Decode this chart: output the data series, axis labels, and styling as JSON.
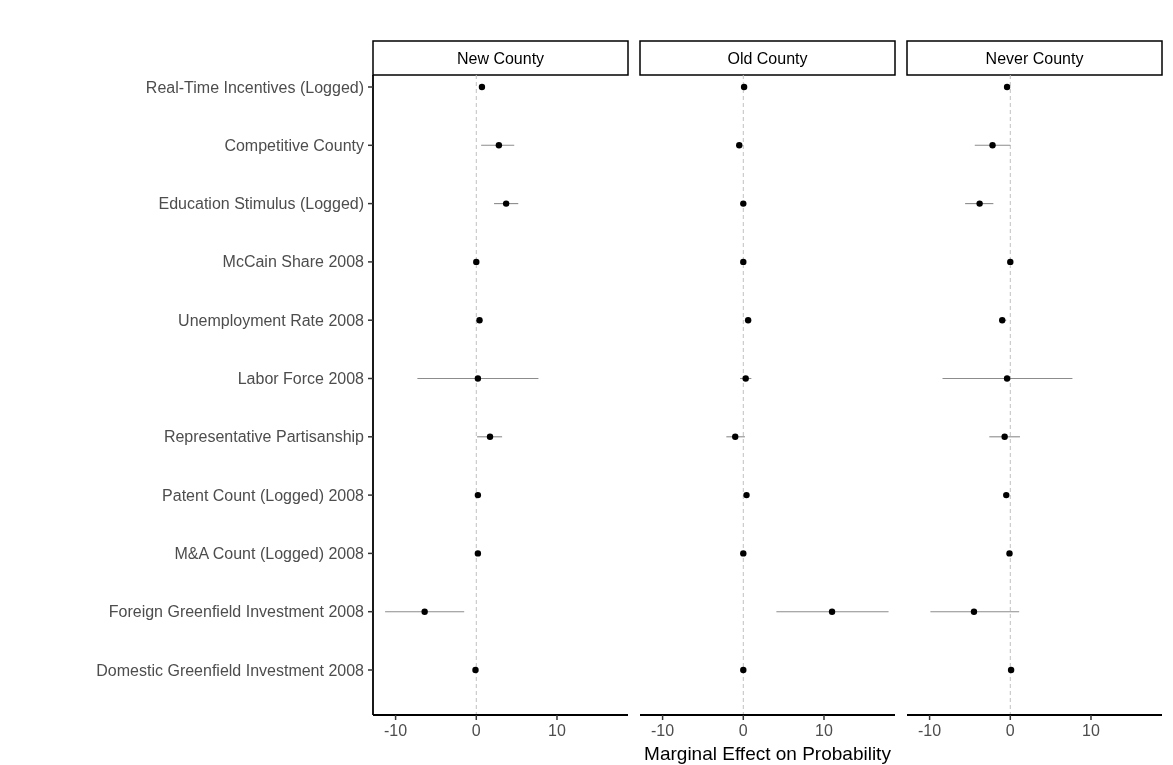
{
  "chart_data": [
    {
      "type": "scatter",
      "title": "New County",
      "orientation": "horizontal",
      "categories": [
        "Real-Time Incentives (Logged)",
        "Competitive County",
        "Education Stimulus (Logged)",
        "McCain Share 2008",
        "Unemployment Rate 2008",
        "Labor Force 2008",
        "Representative Partisanship",
        "Patent Count (Logged) 2008",
        "M&A Count (Logged) 2008",
        "Foreign Greenfield Investment 2008",
        "Domestic Greenfield Investment 2008"
      ],
      "values": [
        0.7,
        2.8,
        3.7,
        0.0,
        0.4,
        0.2,
        1.7,
        0.2,
        0.2,
        -6.4,
        -0.1
      ],
      "errors": [
        null,
        [
          0.6,
          4.7
        ],
        [
          2.2,
          5.2
        ],
        null,
        null,
        [
          -7.3,
          7.7
        ],
        [
          0.1,
          3.2
        ],
        null,
        null,
        [
          -11.3,
          -1.5
        ],
        null
      ],
      "color": "#000000",
      "marker": "circle",
      "xlim": [
        -12.8,
        18.8
      ],
      "xticks": [
        -10,
        0,
        10
      ],
      "grid": false,
      "ref_lines": [
        {
          "axis": "x",
          "value": 0,
          "color": "#c0c0c0",
          "line_style": "dashed"
        }
      ]
    },
    {
      "type": "scatter",
      "title": "Old County",
      "orientation": "horizontal",
      "xlabel": "Marginal Effect on Probability",
      "tick_labels": "x",
      "categories": [
        "Real-Time Incentives (Logged)",
        "Competitive County",
        "Education Stimulus (Logged)",
        "McCain Share 2008",
        "Unemployment Rate 2008",
        "Labor Force 2008",
        "Representative Partisanship",
        "Patent Count (Logged) 2008",
        "M&A Count (Logged) 2008",
        "Foreign Greenfield Investment 2008",
        "Domestic Greenfield Investment 2008"
      ],
      "values": [
        0.1,
        -0.5,
        0.0,
        0.0,
        0.6,
        0.3,
        -1.0,
        0.4,
        0.0,
        11.0,
        0.0
      ],
      "errors": [
        null,
        null,
        null,
        null,
        null,
        [
          -0.4,
          1.0
        ],
        [
          -2.1,
          0.2
        ],
        null,
        null,
        [
          4.1,
          18.0
        ],
        null
      ],
      "color": "#000000",
      "marker": "circle",
      "xlim": [
        -12.8,
        18.8
      ],
      "xticks": [
        -10,
        0,
        10
      ],
      "grid": false,
      "ref_lines": [
        {
          "axis": "x",
          "value": 0,
          "color": "#c0c0c0",
          "line_style": "dashed"
        }
      ]
    },
    {
      "type": "scatter",
      "title": "Never County",
      "orientation": "horizontal",
      "tick_labels": "x",
      "categories": [
        "Real-Time Incentives (Logged)",
        "Competitive County",
        "Education Stimulus (Logged)",
        "McCain Share 2008",
        "Unemployment Rate 2008",
        "Labor Force 2008",
        "Representative Partisanship",
        "Patent Count (Logged) 2008",
        "M&A Count (Logged) 2008",
        "Foreign Greenfield Investment 2008",
        "Domestic Greenfield Investment 2008"
      ],
      "values": [
        -0.4,
        -2.2,
        -3.8,
        0.0,
        -1.0,
        -0.4,
        -0.7,
        -0.5,
        -0.1,
        -4.5,
        0.1
      ],
      "errors": [
        null,
        [
          -4.4,
          0.0
        ],
        [
          -5.6,
          -2.1
        ],
        null,
        [
          -1.4,
          -0.5
        ],
        [
          -8.4,
          7.7
        ],
        [
          -2.6,
          1.2
        ],
        null,
        null,
        [
          -9.9,
          1.1
        ],
        null
      ],
      "color": "#000000",
      "marker": "circle",
      "xlim": [
        -12.8,
        18.8
      ],
      "xticks": [
        -10,
        0,
        10
      ],
      "grid": false,
      "ref_lines": [
        {
          "axis": "x",
          "value": 0,
          "color": "#c0c0c0",
          "line_style": "dashed"
        }
      ]
    }
  ]
}
